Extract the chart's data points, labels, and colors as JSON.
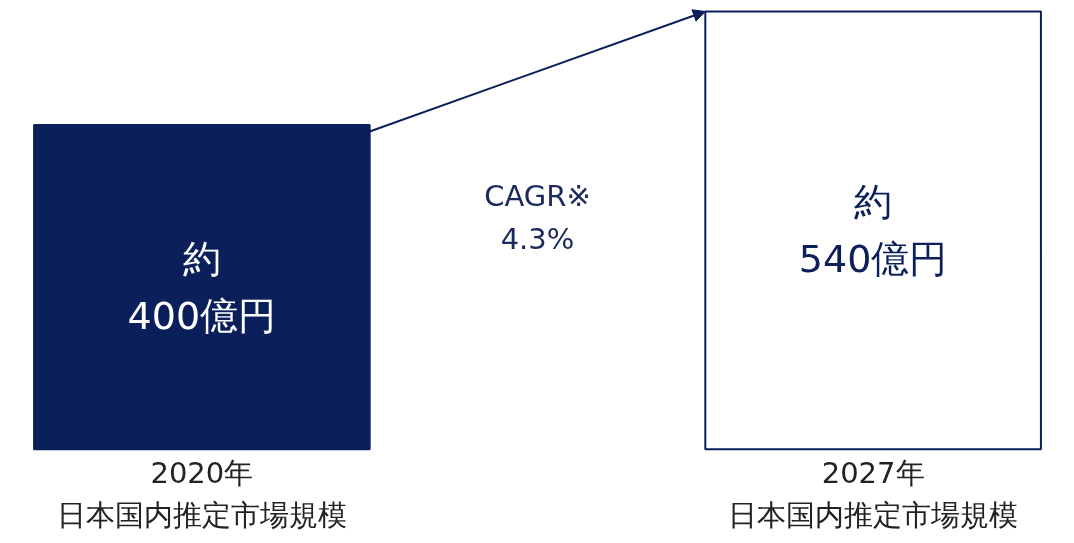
{
  "chart_data": {
    "type": "bar",
    "categories": [
      "2020年日本国内推定市場規模",
      "2027年日本国内推定市場規模"
    ],
    "values": [
      400,
      540
    ],
    "value_labels": [
      "約\n400億円",
      "約\n540億円"
    ],
    "colors": [
      "#0b1f5b",
      "#ffffff"
    ],
    "annotations": [
      "CAGR※\n4.3%"
    ]
  }
}
